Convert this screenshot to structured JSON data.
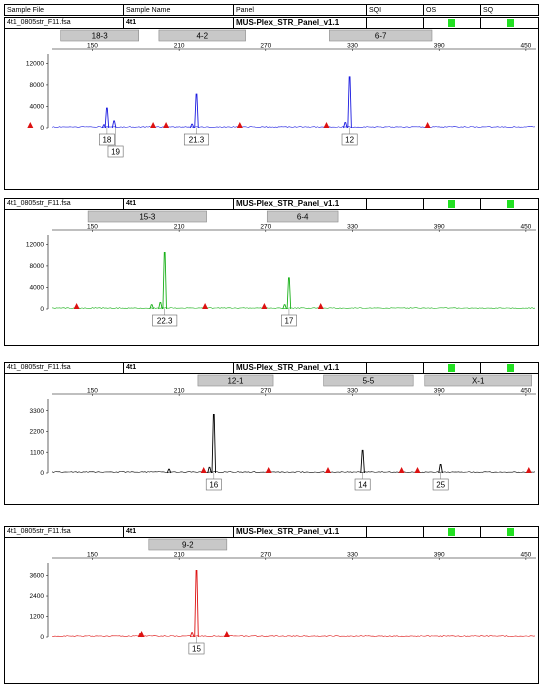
{
  "header": {
    "sample_file": "Sample File",
    "sample_name": "Sample Name",
    "panel": "Panel",
    "sqi": "SQI",
    "os": "OS",
    "sq": "SQ"
  },
  "chart_data": [
    {
      "type": "line",
      "sample_file": "4t1_0805str_F11.fsa",
      "sample_name": "4t1",
      "panel": "MUS-Plex_STR_Panel_v1.1",
      "color": "#1a1ae0",
      "x_ticks": [
        150,
        210,
        270,
        330,
        390,
        450
      ],
      "y_ticks": [
        0,
        4000,
        8000,
        12000
      ],
      "ylim": [
        0,
        13000
      ],
      "bins": [
        {
          "label": "18-3",
          "start": 128,
          "end": 182
        },
        {
          "label": "4-2",
          "start": 196,
          "end": 256
        },
        {
          "label": "6-7",
          "start": 314,
          "end": 385
        }
      ],
      "peaks": [
        {
          "x": 160,
          "y": 3700
        },
        {
          "x": 165,
          "y": 1300
        },
        {
          "x": 158,
          "y": 600
        },
        {
          "x": 222,
          "y": 6300
        },
        {
          "x": 219,
          "y": 700
        },
        {
          "x": 328,
          "y": 9500
        },
        {
          "x": 325,
          "y": 1000
        }
      ],
      "markers": [
        107,
        192,
        201,
        252,
        312,
        382
      ],
      "allele_labels": [
        {
          "x": 160,
          "text": "18",
          "row": 0
        },
        {
          "x": 166,
          "text": "19",
          "row": 1
        },
        {
          "x": 222,
          "text": "21.3",
          "row": 0
        },
        {
          "x": 328,
          "text": "12",
          "row": 0
        }
      ]
    },
    {
      "type": "line",
      "sample_file": "4t1_0805str_F11.fsa",
      "sample_name": "4t1",
      "panel": "MUS-Plex_STR_Panel_v1.1",
      "color": "#18b018",
      "x_ticks": [
        150,
        210,
        270,
        330,
        390,
        450
      ],
      "y_ticks": [
        0,
        4000,
        8000,
        12000
      ],
      "ylim": [
        0,
        13000
      ],
      "bins": [
        {
          "label": "15-3",
          "start": 147,
          "end": 229
        },
        {
          "label": "6-4",
          "start": 271,
          "end": 320
        }
      ],
      "peaks": [
        {
          "x": 200,
          "y": 10500
        },
        {
          "x": 197,
          "y": 1200
        },
        {
          "x": 191,
          "y": 800
        },
        {
          "x": 286,
          "y": 5800
        },
        {
          "x": 283,
          "y": 800
        }
      ],
      "markers": [
        139,
        228,
        269,
        308
      ],
      "allele_labels": [
        {
          "x": 200,
          "text": "22.3",
          "row": 0
        },
        {
          "x": 286,
          "text": "17",
          "row": 0
        }
      ]
    },
    {
      "type": "line",
      "sample_file": "4t1_0805str_F11.fsa",
      "sample_name": "4t1",
      "panel": "MUS-Plex_STR_Panel_v1.1",
      "color": "#000000",
      "x_ticks": [
        150,
        210,
        270,
        330,
        390,
        450
      ],
      "y_ticks": [
        0,
        1100,
        2200,
        3300
      ],
      "ylim": [
        0,
        3700
      ],
      "bins": [
        {
          "label": "12-1",
          "start": 223,
          "end": 275
        },
        {
          "label": "5-5",
          "start": 310,
          "end": 372
        },
        {
          "label": "X-1",
          "start": 380,
          "end": 454
        }
      ],
      "peaks": [
        {
          "x": 234,
          "y": 3100
        },
        {
          "x": 231,
          "y": 300
        },
        {
          "x": 203,
          "y": 200
        },
        {
          "x": 337,
          "y": 1200
        },
        {
          "x": 391,
          "y": 450
        }
      ],
      "markers": [
        227,
        272,
        313,
        364,
        375,
        452
      ],
      "allele_labels": [
        {
          "x": 234,
          "text": "16",
          "row": 0
        },
        {
          "x": 337,
          "text": "14",
          "row": 0
        },
        {
          "x": 391,
          "text": "25",
          "row": 0
        }
      ]
    },
    {
      "type": "line",
      "sample_file": "4t1_0805str_F11.fsa",
      "sample_name": "4t1",
      "panel": "MUS-Plex_STR_Panel_v1.1",
      "color": "#dd1111",
      "x_ticks": [
        150,
        210,
        270,
        330,
        390,
        450
      ],
      "y_ticks": [
        0,
        1200,
        2400,
        3600
      ],
      "ylim": [
        0,
        4100
      ],
      "bins": [
        {
          "label": "9-2",
          "start": 189,
          "end": 243
        }
      ],
      "peaks": [
        {
          "x": 222,
          "y": 3900
        },
        {
          "x": 219,
          "y": 250
        },
        {
          "x": 183,
          "y": 200
        }
      ],
      "markers": [
        184,
        243
      ],
      "allele_labels": [
        {
          "x": 222,
          "text": "15",
          "row": 0
        }
      ]
    }
  ]
}
